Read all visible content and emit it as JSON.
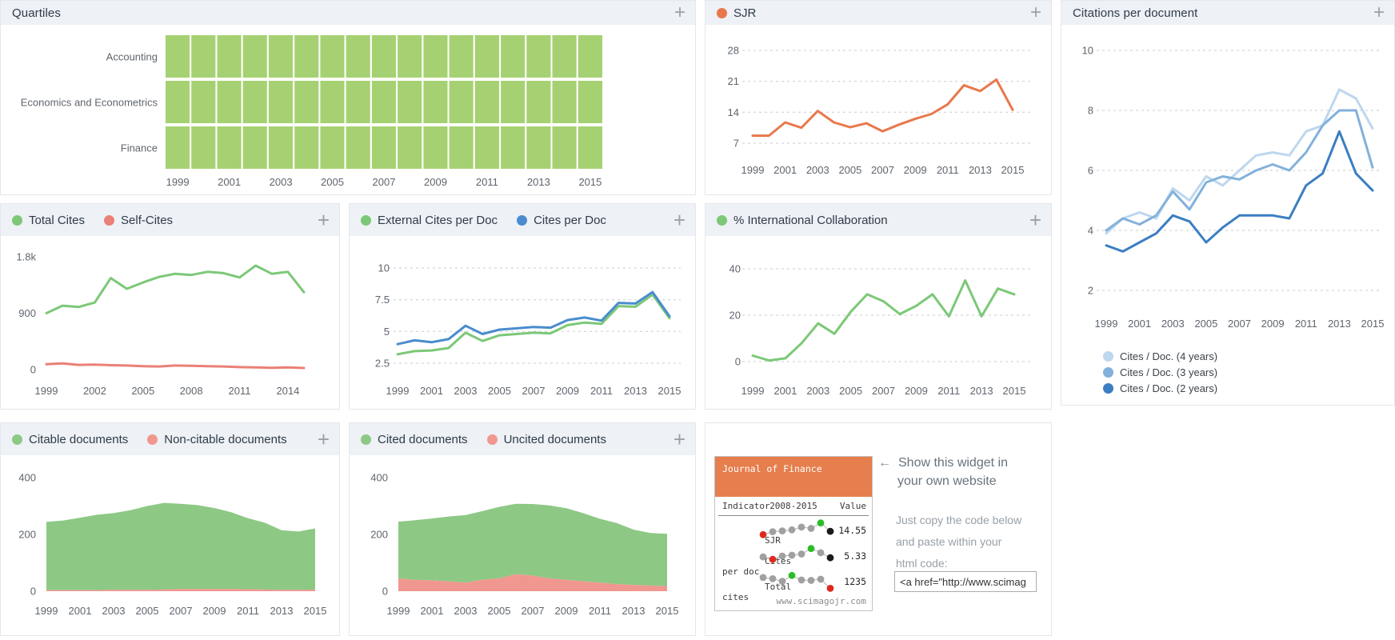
{
  "ui": {
    "plus": "+",
    "arrow_left": "←"
  },
  "chart_data": [
    {
      "id": "quartiles",
      "type": "heatmap",
      "title": "Quartiles",
      "rows": [
        "Accounting",
        "Economics and Econometrics",
        "Finance"
      ],
      "x": [
        1999,
        2000,
        2001,
        2002,
        2003,
        2004,
        2005,
        2006,
        2007,
        2008,
        2009,
        2010,
        2011,
        2012,
        2013,
        2014,
        2015
      ],
      "cell_value": "Q1",
      "cell_color": "#a6d172",
      "xticks": [
        1999,
        2001,
        2003,
        2005,
        2007,
        2009,
        2011,
        2013,
        2015
      ]
    },
    {
      "id": "sjr",
      "type": "line",
      "x": [
        1999,
        2000,
        2001,
        2002,
        2003,
        2004,
        2005,
        2006,
        2007,
        2008,
        2009,
        2010,
        2011,
        2012,
        2013,
        2014,
        2015
      ],
      "series": [
        {
          "name": "SJR",
          "color": "#e8784c",
          "values": [
            8.7,
            8.7,
            11.7,
            10.5,
            14.3,
            11.7,
            10.6,
            11.5,
            9.7,
            11.2,
            12.5,
            13.6,
            15.8,
            20.1,
            18.8,
            21.4,
            14.55
          ]
        }
      ],
      "yticks": [
        7,
        14,
        21,
        28
      ],
      "ylim": [
        7,
        28
      ],
      "grid": true,
      "xticks": [
        1999,
        2001,
        2003,
        2005,
        2007,
        2009,
        2011,
        2013,
        2015
      ]
    },
    {
      "id": "citations_per_document",
      "type": "line",
      "title": "Citations per document",
      "x": [
        1999,
        2000,
        2001,
        2002,
        2003,
        2004,
        2005,
        2006,
        2007,
        2008,
        2009,
        2010,
        2011,
        2012,
        2013,
        2014,
        2015
      ],
      "series": [
        {
          "name": "Cites / Doc. (4 years)",
          "color": "#bdd7ee",
          "values": [
            3.9,
            4.4,
            4.6,
            4.4,
            5.4,
            5.0,
            5.8,
            5.5,
            6.0,
            6.5,
            6.6,
            6.5,
            7.3,
            7.5,
            8.7,
            8.4,
            7.4
          ]
        },
        {
          "name": "Cites / Doc. (3 years)",
          "color": "#82b1db",
          "values": [
            4.0,
            4.4,
            4.2,
            4.5,
            5.3,
            4.7,
            5.6,
            5.8,
            5.7,
            6.0,
            6.2,
            6.0,
            6.6,
            7.5,
            8.0,
            8.0,
            6.1
          ]
        },
        {
          "name": "Cites / Doc. (2 years)",
          "color": "#3b7ec2",
          "values": [
            3.5,
            3.3,
            3.6,
            3.9,
            4.5,
            4.3,
            3.6,
            4.1,
            4.5,
            4.5,
            4.5,
            4.4,
            5.5,
            5.9,
            7.3,
            5.9,
            5.33
          ]
        }
      ],
      "yticks": [
        2,
        4,
        6,
        8,
        10
      ],
      "ylim": [
        2,
        10
      ],
      "grid": true,
      "legend_position": "bottom",
      "xticks": [
        1999,
        2001,
        2003,
        2005,
        2007,
        2009,
        2011,
        2013,
        2015
      ]
    },
    {
      "id": "total_cites",
      "type": "line",
      "x": [
        1999,
        2000,
        2001,
        2002,
        2003,
        2004,
        2005,
        2006,
        2007,
        2008,
        2009,
        2010,
        2011,
        2012,
        2013,
        2014,
        2015
      ],
      "series": [
        {
          "name": "Total Cites",
          "color": "#7cc878",
          "values": [
            900,
            1020,
            1000,
            1070,
            1460,
            1290,
            1390,
            1480,
            1530,
            1510,
            1560,
            1540,
            1470,
            1660,
            1530,
            1560,
            1235
          ]
        },
        {
          "name": "Self-Cites",
          "color": "#ea8077",
          "values": [
            85,
            100,
            75,
            80,
            70,
            65,
            55,
            50,
            65,
            60,
            55,
            50,
            40,
            35,
            30,
            35,
            25
          ]
        }
      ],
      "yticks": [
        {
          "v": 0,
          "label": "0"
        },
        {
          "v": 900,
          "label": "900"
        },
        {
          "v": 1800,
          "label": "1.8k"
        }
      ],
      "ylim": [
        0,
        1800
      ],
      "grid": false,
      "xticks": [
        1999,
        2002,
        2005,
        2008,
        2011,
        2014
      ]
    },
    {
      "id": "cites_per_doc",
      "type": "line",
      "x": [
        1999,
        2000,
        2001,
        2002,
        2003,
        2004,
        2005,
        2006,
        2007,
        2008,
        2009,
        2010,
        2011,
        2012,
        2013,
        2014,
        2015
      ],
      "series": [
        {
          "name": "External Cites per Doc",
          "color": "#7cc878",
          "values": [
            3.2,
            3.45,
            3.5,
            3.7,
            4.9,
            4.25,
            4.7,
            4.8,
            4.9,
            4.85,
            5.5,
            5.7,
            5.6,
            7.0,
            6.95,
            7.9,
            6.05
          ]
        },
        {
          "name": "Cites per Doc",
          "color": "#4a8ccd",
          "values": [
            4.0,
            4.3,
            4.15,
            4.4,
            5.45,
            4.8,
            5.15,
            5.25,
            5.35,
            5.3,
            5.9,
            6.1,
            5.85,
            7.25,
            7.2,
            8.1,
            6.2
          ]
        }
      ],
      "yticks": [
        2.5,
        5,
        7.5,
        10
      ],
      "ylim": [
        2.5,
        10
      ],
      "grid": true,
      "xticks": [
        1999,
        2001,
        2003,
        2005,
        2007,
        2009,
        2011,
        2013,
        2015
      ]
    },
    {
      "id": "intl_collaboration",
      "type": "line",
      "x": [
        1999,
        2000,
        2001,
        2002,
        2003,
        2004,
        2005,
        2006,
        2007,
        2008,
        2009,
        2010,
        2011,
        2012,
        2013,
        2014,
        2015
      ],
      "series": [
        {
          "name": "% International Collaboration",
          "color": "#7cc878",
          "values": [
            2.6,
            0.5,
            1.4,
            8,
            16.5,
            12,
            21.5,
            29,
            26,
            20.5,
            24,
            29,
            19.5,
            35,
            19.5,
            31.5,
            29
          ]
        }
      ],
      "yticks": [
        0,
        20,
        40
      ],
      "ylim": [
        0,
        40
      ],
      "grid": true,
      "xticks": [
        1999,
        2001,
        2003,
        2005,
        2007,
        2009,
        2011,
        2013,
        2015
      ]
    },
    {
      "id": "citable_documents",
      "type": "area",
      "x": [
        1999,
        2000,
        2001,
        2002,
        2003,
        2004,
        2005,
        2006,
        2007,
        2008,
        2009,
        2010,
        2011,
        2012,
        2013,
        2014,
        2015
      ],
      "series": [
        {
          "name": "Citable documents",
          "color": "#8dc985",
          "values": [
            240,
            245,
            255,
            265,
            270,
            280,
            295,
            305,
            300,
            295,
            285,
            270,
            250,
            235,
            210,
            205,
            215
          ]
        },
        {
          "name": "Non-citable documents",
          "color": "#f0978f",
          "values": [
            4,
            4,
            4,
            4,
            5,
            5,
            5,
            6,
            8,
            8,
            8,
            8,
            7,
            6,
            5,
            5,
            6
          ]
        }
      ],
      "yticks": [
        0,
        200,
        400
      ],
      "ylim": [
        0,
        400
      ],
      "grid": false,
      "xticks": [
        1999,
        2001,
        2003,
        2005,
        2007,
        2009,
        2011,
        2013,
        2015
      ]
    },
    {
      "id": "cited_documents",
      "type": "area",
      "x": [
        1999,
        2000,
        2001,
        2002,
        2003,
        2004,
        2005,
        2006,
        2007,
        2008,
        2009,
        2010,
        2011,
        2012,
        2013,
        2014,
        2015
      ],
      "series": [
        {
          "name": "Cited documents",
          "color": "#8dc985",
          "values": [
            200,
            210,
            218,
            228,
            238,
            242,
            252,
            248,
            252,
            257,
            252,
            240,
            225,
            215,
            195,
            185,
            184
          ]
        },
        {
          "name": "Uncited documents",
          "color": "#f0978f",
          "values": [
            45,
            40,
            38,
            35,
            30,
            40,
            45,
            60,
            55,
            45,
            40,
            35,
            30,
            25,
            22,
            20,
            18
          ]
        }
      ],
      "yticks": [
        0,
        200,
        400
      ],
      "ylim": [
        0,
        400
      ],
      "grid": false,
      "xticks": [
        1999,
        2001,
        2003,
        2005,
        2007,
        2009,
        2011,
        2013,
        2015
      ]
    }
  ],
  "widget": {
    "header": "Journal of Finance",
    "columns": {
      "indicator": "Indicator",
      "period": "2008-2015",
      "value": "Value"
    },
    "rows": [
      {
        "label1": "SJR",
        "label2": "",
        "value": "14.55",
        "dots": [
          {
            "c": "red",
            "v": 0.22
          },
          {
            "c": "gray",
            "v": 0.36
          },
          {
            "c": "gray",
            "v": 0.4
          },
          {
            "c": "gray",
            "v": 0.45
          },
          {
            "c": "gray",
            "v": 0.58
          },
          {
            "c": "gray",
            "v": 0.52
          },
          {
            "c": "green",
            "v": 0.78
          },
          {
            "c": "black",
            "v": 0.38
          }
        ]
      },
      {
        "label1": "Cites",
        "label2": "per doc",
        "value": "5.33",
        "dots": [
          {
            "c": "gray",
            "v": 0.38
          },
          {
            "c": "red",
            "v": 0.26
          },
          {
            "c": "gray",
            "v": 0.42
          },
          {
            "c": "gray",
            "v": 0.46
          },
          {
            "c": "gray",
            "v": 0.52
          },
          {
            "c": "green",
            "v": 0.78
          },
          {
            "c": "gray",
            "v": 0.58
          },
          {
            "c": "black",
            "v": 0.34
          }
        ]
      },
      {
        "label1": "Total",
        "label2": "cites",
        "value": "1235",
        "dots": [
          {
            "c": "gray",
            "v": 0.62
          },
          {
            "c": "gray",
            "v": 0.56
          },
          {
            "c": "gray",
            "v": 0.44
          },
          {
            "c": "green",
            "v": 0.72
          },
          {
            "c": "gray",
            "v": 0.5
          },
          {
            "c": "gray",
            "v": 0.48
          },
          {
            "c": "gray",
            "v": 0.54
          },
          {
            "c": "red",
            "v": 0.1
          }
        ]
      }
    ],
    "footer": "www.scimagojr.com",
    "dot_colors": {
      "red": "#dd2a1d",
      "green": "#2abd28",
      "gray": "#a0a0a0",
      "black": "#1a1a1a",
      "line": "#b5b5b5"
    },
    "aside": {
      "title_line1": "Show this widget in",
      "title_line2": "your own website",
      "body_line1": "Just copy the code below",
      "body_line2": "and paste within your",
      "body_line3": "html code:",
      "embed_code": "<a href=\"http://www.scimag"
    }
  }
}
